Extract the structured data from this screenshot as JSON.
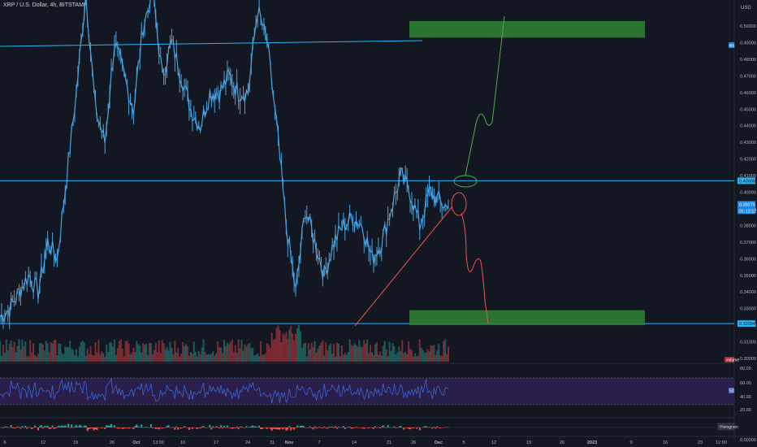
{
  "header": {
    "symbol_title": "XRP / U.S. Dollar, 4h, BITSTAMP",
    "currency": "USD"
  },
  "price_axis": {
    "ticks": [
      "0.50000",
      "0.49000",
      "0.48000",
      "0.47000",
      "0.46000",
      "0.45000",
      "0.44000",
      "0.43000",
      "0.42000",
      "0.41000",
      "0.40000",
      "0.39000",
      "0.38000",
      "0.37000",
      "0.36000",
      "0.35000",
      "0.34000",
      "0.33000",
      "0.32000",
      "0.31000",
      "0.30000"
    ],
    "labels": {
      "resistance": "0.40688",
      "current_price": "0.39275",
      "countdown": "01:12:12",
      "support": "0.32094",
      "blue_flag": "881"
    }
  },
  "rsi_axis": {
    "ticks": [
      "80.00",
      "60.00",
      "40.00",
      "20.00"
    ],
    "value_label": "50"
  },
  "macd_axis": {
    "label": "Histogram",
    "zero": "0.00000"
  },
  "volume_label": "volume",
  "time_axis": [
    "6",
    "12",
    "19",
    "26",
    "Oct",
    "13:00",
    "10",
    "17",
    "24",
    "31",
    "Nov",
    "7",
    "14",
    "21",
    "26",
    "Dec",
    "5",
    "12",
    "19",
    "26",
    "2023",
    "9",
    "16",
    "23",
    "12:00"
  ],
  "colors": {
    "background": "#131722",
    "candle_line": "#4aa3e0",
    "bull_volume": "#1f5a58",
    "bear_volume": "#7a2c34",
    "level_line": "#29b6f6",
    "zone": "#2e7d32",
    "bull_path": "#4caf50",
    "bear_path": "#ef5350",
    "rsi_fill": "#2a1e4a",
    "rsi_line": "#3a66d6"
  },
  "chart_data": {
    "type": "line",
    "y_range": [
      0.3,
      0.5
    ],
    "price_path": [
      {
        "x": "Sep 1",
        "y": 0.325
      },
      {
        "x": "Sep 4",
        "y": 0.33
      },
      {
        "x": "Sep 6",
        "y": 0.34
      },
      {
        "x": "Sep 9",
        "y": 0.35
      },
      {
        "x": "Sep 12",
        "y": 0.34
      },
      {
        "x": "Sep 15",
        "y": 0.37
      },
      {
        "x": "Sep 17",
        "y": 0.36
      },
      {
        "x": "Sep 19",
        "y": 0.41
      },
      {
        "x": "Sep 21",
        "y": 0.46
      },
      {
        "x": "Sep 23",
        "y": 0.52
      },
      {
        "x": "Sep 25",
        "y": 0.45
      },
      {
        "x": "Sep 27",
        "y": 0.43
      },
      {
        "x": "Sep 30",
        "y": 0.49
      },
      {
        "x": "Oct 2",
        "y": 0.47
      },
      {
        "x": "Oct 4",
        "y": 0.45
      },
      {
        "x": "Oct 7",
        "y": 0.5
      },
      {
        "x": "Oct 9",
        "y": 0.52
      },
      {
        "x": "Oct 11",
        "y": 0.47
      },
      {
        "x": "Oct 13",
        "y": 0.49
      },
      {
        "x": "Oct 15",
        "y": 0.47
      },
      {
        "x": "Oct 18",
        "y": 0.45
      },
      {
        "x": "Oct 20",
        "y": 0.44
      },
      {
        "x": "Oct 23",
        "y": 0.46
      },
      {
        "x": "Oct 26",
        "y": 0.46
      },
      {
        "x": "Oct 29",
        "y": 0.47
      },
      {
        "x": "Nov 1",
        "y": 0.46
      },
      {
        "x": "Nov 3",
        "y": 0.46
      },
      {
        "x": "Nov 5",
        "y": 0.51
      },
      {
        "x": "Nov 6",
        "y": 0.49
      },
      {
        "x": "Nov 7",
        "y": 0.44
      },
      {
        "x": "Nov 8",
        "y": 0.38
      },
      {
        "x": "Nov 9",
        "y": 0.34
      },
      {
        "x": "Nov 10",
        "y": 0.39
      },
      {
        "x": "Nov 11",
        "y": 0.37
      },
      {
        "x": "Nov 12",
        "y": 0.35
      },
      {
        "x": "Nov 13",
        "y": 0.37
      },
      {
        "x": "Nov 14",
        "y": 0.38
      },
      {
        "x": "Nov 16",
        "y": 0.385
      },
      {
        "x": "Nov 18",
        "y": 0.38
      },
      {
        "x": "Nov 20",
        "y": 0.36
      },
      {
        "x": "Nov 22",
        "y": 0.37
      },
      {
        "x": "Nov 23",
        "y": 0.39
      },
      {
        "x": "Nov 24",
        "y": 0.41
      },
      {
        "x": "Nov 26",
        "y": 0.4
      },
      {
        "x": "Nov 28",
        "y": 0.38
      },
      {
        "x": "Nov 30",
        "y": 0.4
      },
      {
        "x": "Dec 1",
        "y": 0.395
      },
      {
        "x": "Dec 2",
        "y": 0.39
      }
    ],
    "levels": [
      {
        "name": "resistance",
        "y": 0.40688
      },
      {
        "name": "support",
        "y": 0.32094
      }
    ],
    "projection_up": [
      0.4,
      0.42,
      0.445,
      0.44,
      0.5
    ],
    "projection_down": [
      0.39,
      0.38,
      0.355,
      0.36,
      0.32
    ],
    "target_zones": [
      {
        "name": "upper",
        "y_top": 0.503,
        "y_bottom": 0.493
      },
      {
        "name": "lower",
        "y_top": 0.329,
        "y_bottom": 0.32
      }
    ],
    "rsi_band": [
      30,
      70
    ]
  }
}
